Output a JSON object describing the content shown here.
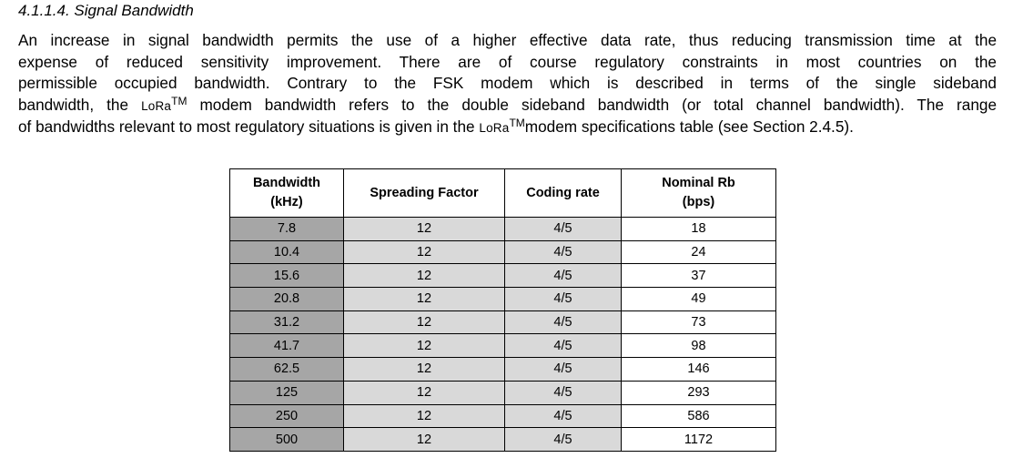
{
  "section": {
    "heading": "4.1.1.4. Signal Bandwidth",
    "lines": [
      "An increase in signal bandwidth permits the use of a higher effective data rate, thus reducing transmission time at the",
      "expense of reduced sensitivity improvement. There are of course regulatory constraints in most countries on the",
      "permissible occupied bandwidth. Contrary to the FSK modem which is described in terms of the single sideband"
    ],
    "line4_a": "bandwidth, the ",
    "line4_b": " modem bandwidth refers to the double sideband bandwidth (or total channel bandwidth). The range",
    "line5_a": "of bandwidths relevant to most regulatory situations is given in the ",
    "line5_b": "modem specifications table (see Section 2.4.5).",
    "lora": "LoRa",
    "tm": "TM"
  },
  "table": {
    "headers": {
      "bandwidth_1": "Bandwidth",
      "bandwidth_2": "(kHz)",
      "spreading_factor": "Spreading Factor",
      "coding_rate": "Coding rate",
      "rb_1": "Nominal Rb",
      "rb_2": "(bps)"
    },
    "rows": [
      {
        "bw": "7.8",
        "sf": "12",
        "cr": "4/5",
        "rb": "18"
      },
      {
        "bw": "10.4",
        "sf": "12",
        "cr": "4/5",
        "rb": "24"
      },
      {
        "bw": "15.6",
        "sf": "12",
        "cr": "4/5",
        "rb": "37"
      },
      {
        "bw": "20.8",
        "sf": "12",
        "cr": "4/5",
        "rb": "49"
      },
      {
        "bw": "31.2",
        "sf": "12",
        "cr": "4/5",
        "rb": "73"
      },
      {
        "bw": "41.7",
        "sf": "12",
        "cr": "4/5",
        "rb": "98"
      },
      {
        "bw": "62.5",
        "sf": "12",
        "cr": "4/5",
        "rb": "146"
      },
      {
        "bw": "125",
        "sf": "12",
        "cr": "4/5",
        "rb": "293"
      },
      {
        "bw": "250",
        "sf": "12",
        "cr": "4/5",
        "rb": "586"
      },
      {
        "bw": "500",
        "sf": "12",
        "cr": "4/5",
        "rb": "1172"
      }
    ]
  }
}
